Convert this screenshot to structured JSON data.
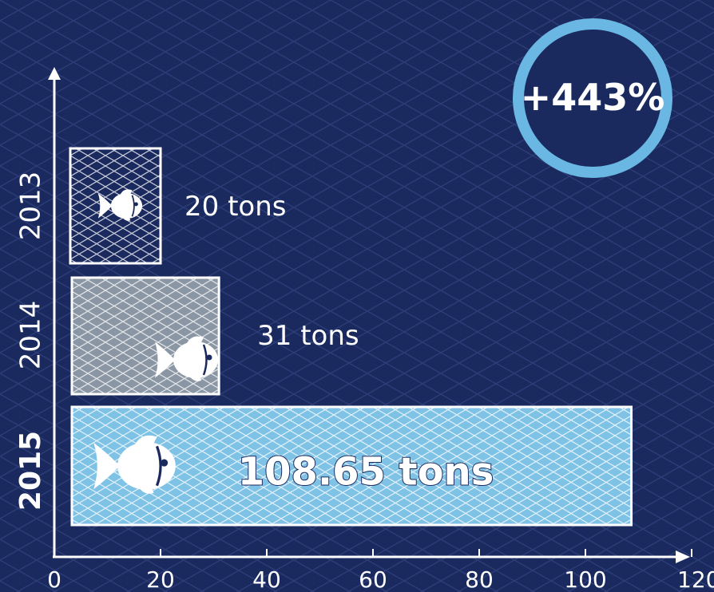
{
  "chart_data": {
    "type": "bar",
    "orientation": "horizontal",
    "categories": [
      "2013",
      "2014",
      "2015"
    ],
    "values": [
      20,
      31,
      108.65
    ],
    "data_labels": [
      "20 tons",
      "31 tons",
      "108.65 tons"
    ],
    "xlim": [
      0,
      120
    ],
    "x_ticks": [
      "0",
      "20",
      "40",
      "60",
      "80",
      "100",
      "120"
    ],
    "xlabel": "",
    "ylabel": "",
    "title": "",
    "legend": "none",
    "grid": false,
    "bar_icons": [
      "fish-icon",
      "fish-icon",
      "fish-icon"
    ],
    "colors": {
      "background": "#1b2a5e",
      "bar_2013": "#1b2a5e",
      "bar_2014": "#8b96a4",
      "bar_2015": "#7ec2e6",
      "axis": "#ffffff",
      "badge_ring": "#6ab7e3"
    }
  },
  "badge": {
    "text": "+443%"
  }
}
